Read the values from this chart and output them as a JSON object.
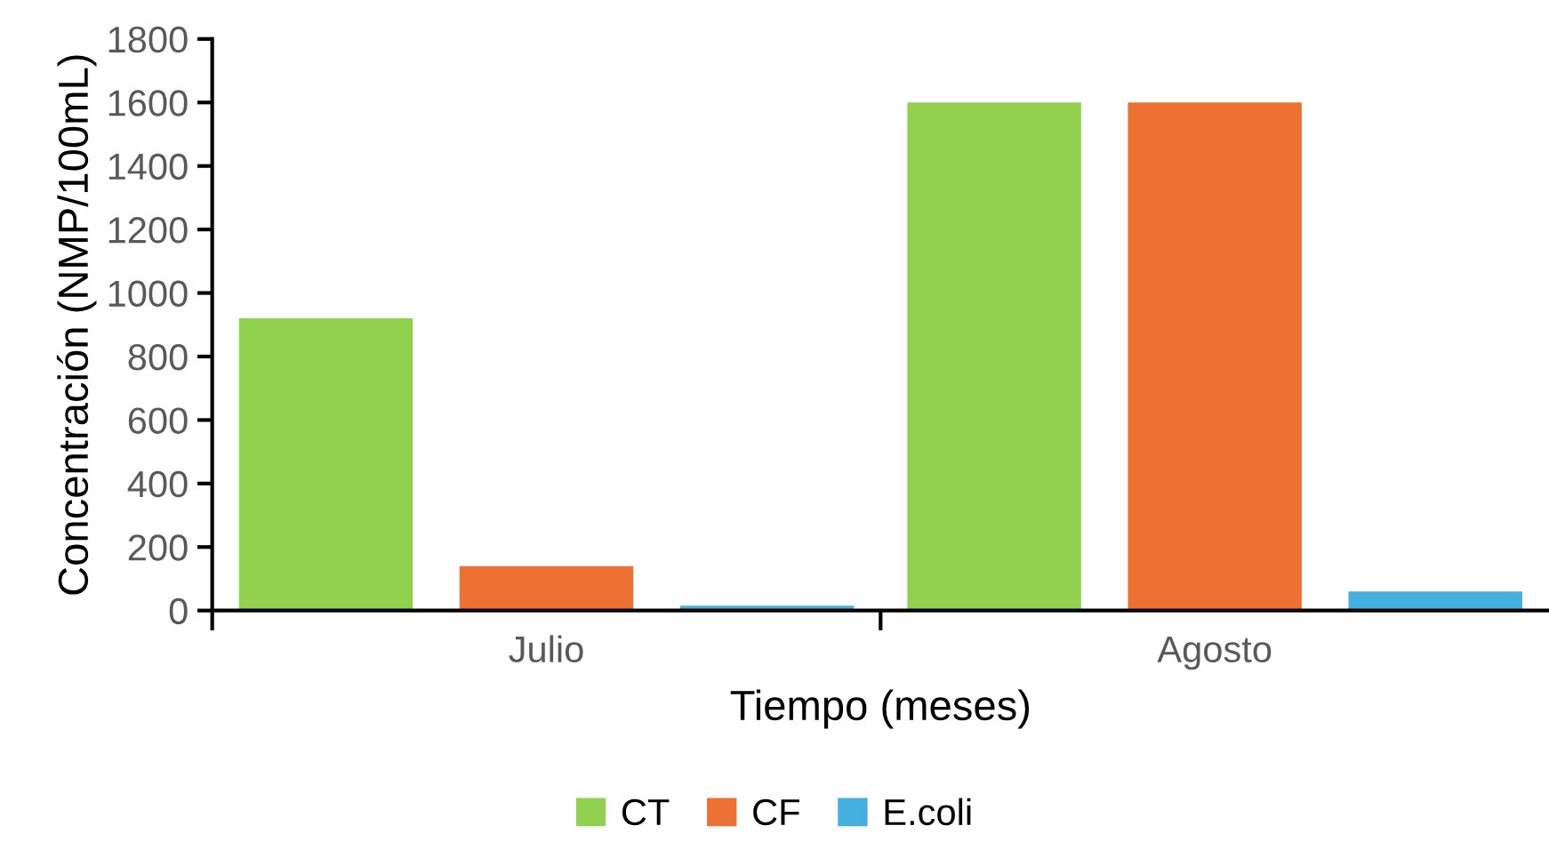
{
  "chart_data": {
    "type": "bar",
    "xlabel": "Tiempo (meses)",
    "ylabel": "Concentración (NMP/100mL)",
    "categories": [
      "Julio",
      "Agosto"
    ],
    "series": [
      {
        "name": "CT",
        "color": "#92d050",
        "values": [
          920,
          1600
        ]
      },
      {
        "name": "CF",
        "color": "#ed7132",
        "values": [
          140,
          1600
        ]
      },
      {
        "name": "E.coli",
        "color": "#45afe0",
        "values": [
          15,
          60
        ]
      }
    ],
    "ylim": [
      0,
      1800
    ],
    "yticks": [
      0,
      200,
      400,
      600,
      800,
      1000,
      1200,
      1400,
      1600,
      1800
    ],
    "grid": false,
    "legend": "bottom"
  }
}
